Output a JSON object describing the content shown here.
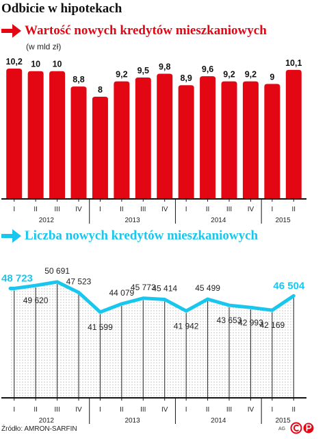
{
  "header": {
    "title": "Odbicie w hipotekach"
  },
  "colors": {
    "red": "#e30613",
    "cyan": "#19c6ee",
    "axis": "#111111"
  },
  "footer": {
    "source": "Źródło: AMRON-SARFIN",
    "credit": "AG"
  },
  "chart_data": [
    {
      "type": "bar",
      "title": "Wartość nowych kredytów mieszkaniowych",
      "subtitle": "(w mld zł)",
      "categories": [
        "I",
        "II",
        "III",
        "IV",
        "I",
        "II",
        "III",
        "IV",
        "I",
        "II",
        "III",
        "IV",
        "I",
        "II"
      ],
      "years": [
        {
          "label": "2012",
          "quarters": 4
        },
        {
          "label": "2013",
          "quarters": 4
        },
        {
          "label": "2014",
          "quarters": 4
        },
        {
          "label": "2015",
          "quarters": 2
        }
      ],
      "values": [
        10.2,
        10,
        10,
        8.8,
        8,
        9.2,
        9.5,
        9.8,
        8.9,
        9.6,
        9.2,
        9.2,
        9,
        10.1
      ],
      "value_labels": [
        "10,2",
        "10",
        "10",
        "8,8",
        "8",
        "9,2",
        "9,5",
        "9,8",
        "8,9",
        "9,6",
        "9,2",
        "9,2",
        "9",
        "10,1"
      ],
      "ylim": [
        0,
        10.2
      ]
    },
    {
      "type": "line",
      "title": "Liczba nowych kredytów mieszkaniowych",
      "categories": [
        "I",
        "II",
        "III",
        "IV",
        "I",
        "II",
        "III",
        "IV",
        "I",
        "II",
        "III",
        "IV",
        "I",
        "II"
      ],
      "years": [
        {
          "label": "2012",
          "quarters": 4
        },
        {
          "label": "2013",
          "quarters": 4
        },
        {
          "label": "2014",
          "quarters": 4
        },
        {
          "label": "2015",
          "quarters": 2
        }
      ],
      "values": [
        48723,
        49620,
        50691,
        47523,
        41599,
        44079,
        45773,
        45414,
        41942,
        45499,
        43653,
        42993,
        42169,
        46504
      ],
      "value_labels": [
        "48 723",
        "49 620",
        "50 691",
        "47 523",
        "41 599",
        "44 079",
        "45 773",
        "45 414",
        "41 942",
        "45 499",
        "43 653",
        "42 993",
        "42 169",
        "46 504"
      ],
      "highlighted": [
        0,
        13
      ]
    }
  ]
}
